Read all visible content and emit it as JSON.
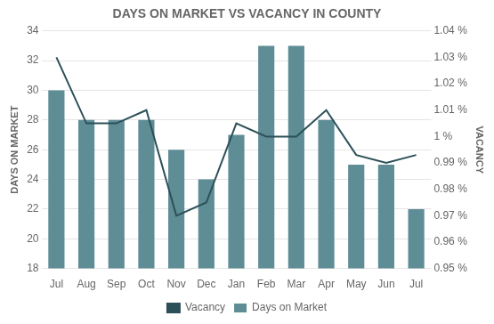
{
  "chart_data": {
    "type": "bar",
    "title": "DAYS ON MARKET VS VACANCY IN COUNTY",
    "categories": [
      "Jul",
      "Aug",
      "Sep",
      "Oct",
      "Nov",
      "Dec",
      "Jan",
      "Feb",
      "Mar",
      "Apr",
      "May",
      "Jun",
      "Jul"
    ],
    "series": [
      {
        "name": "Vacancy",
        "type": "line",
        "axis": "y2",
        "color": "#2c5059",
        "values": [
          1.03,
          1.005,
          1.005,
          1.01,
          0.97,
          0.975,
          1.005,
          1.0,
          1.0,
          1.01,
          0.993,
          0.99,
          0.993
        ]
      },
      {
        "name": "Days on Market",
        "type": "bar",
        "color": "#5f8d96",
        "values": [
          30,
          28,
          28,
          28,
          26,
          24,
          27,
          33,
          33,
          28,
          25,
          25,
          22
        ]
      }
    ],
    "ylabel": "DAYS ON MARKET",
    "y2label": "VACANCY",
    "ylim": [
      18,
      34
    ],
    "yticks": [
      18,
      20,
      22,
      24,
      26,
      28,
      30,
      32,
      34
    ],
    "y2lim": [
      0.95,
      1.04
    ],
    "y2ticks": [
      {
        "value": 0.95,
        "label": "0.95 %"
      },
      {
        "value": 0.96,
        "label": "0.96 %"
      },
      {
        "value": 0.97,
        "label": "0.97 %"
      },
      {
        "value": 0.98,
        "label": "0.98 %"
      },
      {
        "value": 0.99,
        "label": "0.99 %"
      },
      {
        "value": 1.0,
        "label": "1 %"
      },
      {
        "value": 1.01,
        "label": "1.01 %"
      },
      {
        "value": 1.02,
        "label": "1.02 %"
      },
      {
        "value": 1.03,
        "label": "1.03 %"
      },
      {
        "value": 1.04,
        "label": "1.04 %"
      }
    ],
    "grid": "y",
    "legend": "bottom"
  }
}
